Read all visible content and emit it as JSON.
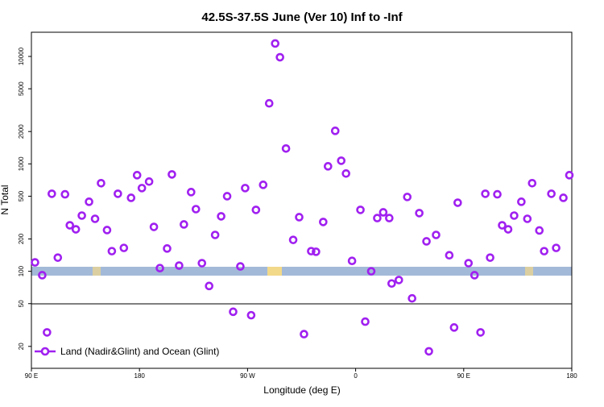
{
  "chart_data": {
    "type": "scatter",
    "title": "42.5S-37.5S June (Ver 10)   Inf to -Inf",
    "x_label": "Longitude (deg E)",
    "y_label": "N Total",
    "log_y": true,
    "legend_position": "bottom-left",
    "xlim": [
      90,
      540
    ],
    "xticks": [
      {
        "value": 90,
        "label": "90 E"
      },
      {
        "value": 180,
        "label": "180"
      },
      {
        "value": 270,
        "label": "90 W"
      },
      {
        "value": 360,
        "label": "0"
      },
      {
        "value": 450,
        "label": "90 E"
      },
      {
        "value": 540,
        "label": "180"
      }
    ],
    "ylim": [
      12.5,
      16800
    ],
    "yticks": [
      20,
      50,
      100,
      200,
      500,
      1000,
      2000,
      5000,
      10000
    ],
    "series": [
      {
        "name": "Land (Nadir&Glint) and Ocean (Glint)",
        "color": "#a020f0",
        "x": [
          93,
          99,
          103,
          107,
          112,
          118,
          122,
          127,
          132,
          138,
          143,
          148,
          153,
          157,
          162,
          167,
          173,
          178,
          182,
          188,
          192,
          197,
          203,
          207,
          213,
          217,
          223,
          227,
          232,
          238,
          243,
          248,
          253,
          258,
          264,
          268,
          273,
          277,
          283,
          288,
          293,
          297,
          302,
          308,
          313,
          317,
          323,
          327,
          333,
          337,
          343,
          348,
          352,
          357,
          364,
          368,
          373,
          378,
          383,
          388,
          390,
          396,
          403,
          407,
          413,
          419,
          421,
          427,
          438,
          442,
          445,
          454,
          459,
          464,
          468,
          472,
          478,
          482,
          487,
          492,
          498,
          503,
          507,
          513,
          517,
          523,
          527,
          533,
          538
        ],
        "values": [
          121,
          92,
          27,
          527,
          134,
          521,
          268,
          246,
          330,
          444,
          308,
          661,
          242,
          154,
          527,
          165,
          483,
          785,
          595,
          684,
          259,
          107,
          163,
          798,
          113,
          273,
          546,
          379,
          119,
          73,
          218,
          325,
          500,
          42,
          111,
          595,
          39,
          373,
          638,
          3660,
          13200,
          9830,
          1390,
          196,
          319,
          26,
          154,
          152,
          288,
          949,
          2030,
          1070,
          813,
          125,
          373,
          34,
          100,
          313,
          354,
          313,
          77,
          83,
          492,
          56,
          348,
          190,
          18,
          218,
          141,
          30,
          435,
          119,
          92,
          27,
          527,
          134,
          521,
          268,
          246,
          330,
          444,
          308,
          661,
          240,
          154,
          527,
          165,
          483,
          785
        ]
      }
    ]
  }
}
